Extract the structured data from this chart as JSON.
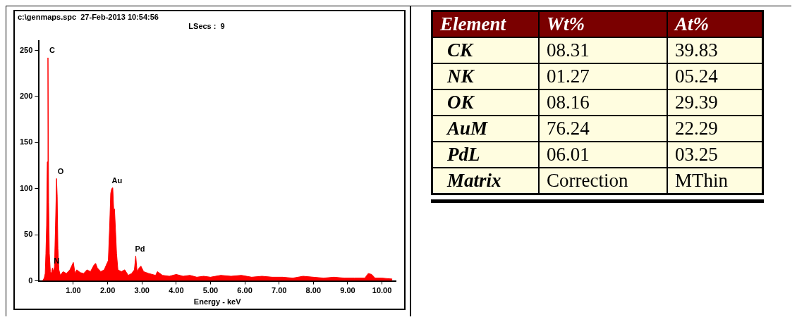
{
  "chart_data": [
    {
      "type": "area",
      "title": "c:\\genmaps.spc  27-Feb-2013 10:54:56",
      "subtitle": "LSecs :  9",
      "xlabel": "Energy - keV",
      "x": [
        0.1,
        0.15,
        0.18,
        0.2,
        0.22,
        0.24,
        0.26,
        0.28,
        0.3,
        0.33,
        0.36,
        0.39,
        0.42,
        0.45,
        0.48,
        0.51,
        0.53,
        0.55,
        0.58,
        0.62,
        0.7,
        0.8,
        0.9,
        1.0,
        1.05,
        1.1,
        1.2,
        1.3,
        1.4,
        1.5,
        1.6,
        1.65,
        1.7,
        1.8,
        1.9,
        1.97,
        2.02,
        2.06,
        2.09,
        2.12,
        2.15,
        2.18,
        2.2,
        2.23,
        2.26,
        2.3,
        2.4,
        2.5,
        2.6,
        2.7,
        2.78,
        2.82,
        2.86,
        2.92,
        2.97,
        3.05,
        3.2,
        3.4,
        3.45,
        3.6,
        3.8,
        4.0,
        4.2,
        4.4,
        4.6,
        4.8,
        5.0,
        5.3,
        5.6,
        5.9,
        6.2,
        6.5,
        6.8,
        7.1,
        7.4,
        7.7,
        8.0,
        8.3,
        8.6,
        8.9,
        9.2,
        9.5,
        9.6,
        9.7,
        9.8,
        10.0,
        10.3
      ],
      "series": [
        {
          "color": "#ff0000",
          "values": [
            0,
            3,
            8,
            30,
            60,
            129,
            242,
            85,
            30,
            10,
            8,
            14,
            10,
            15,
            60,
            111,
            92,
            35,
            12,
            6,
            10,
            8,
            12,
            20,
            8,
            12,
            9,
            8,
            12,
            10,
            17,
            19,
            14,
            10,
            12,
            18,
            22,
            60,
            95,
            100,
            101,
            75,
            78,
            55,
            30,
            12,
            10,
            12,
            6,
            8,
            12,
            27,
            10,
            14,
            16,
            10,
            8,
            6,
            10,
            6,
            5,
            7,
            5,
            6,
            4,
            5,
            4,
            6,
            5,
            6,
            4,
            5,
            4,
            4,
            3,
            5,
            4,
            3,
            4,
            3,
            3,
            3,
            8,
            7,
            3,
            3,
            2
          ]
        }
      ],
      "xlim": [
        0,
        10.4
      ],
      "xticks": [
        {
          "value": 1,
          "label": "1.00"
        },
        {
          "value": 2,
          "label": "2.00"
        },
        {
          "value": 3,
          "label": "3.00"
        },
        {
          "value": 4,
          "label": "4.00"
        },
        {
          "value": 5,
          "label": "5.00"
        },
        {
          "value": 6,
          "label": "6.00"
        },
        {
          "value": 7,
          "label": "7.00"
        },
        {
          "value": 8,
          "label": "8.00"
        },
        {
          "value": 9,
          "label": "9.00"
        },
        {
          "value": 10,
          "label": "10.00"
        }
      ],
      "ylim": [
        0,
        260
      ],
      "yticks": [
        0,
        50,
        100,
        150,
        200,
        250
      ],
      "annotations": [
        {
          "text": "C",
          "x": 0.26,
          "y": 242
        },
        {
          "text": "N",
          "x": 0.39,
          "y": 14
        },
        {
          "text": "O",
          "x": 0.51,
          "y": 111
        },
        {
          "text": "Au",
          "x": 2.15,
          "y": 101
        },
        {
          "text": "Pd",
          "x": 2.82,
          "y": 27
        }
      ]
    },
    {
      "type": "other",
      "xlabel": "Element",
      "categories": [
        "CK",
        "NK",
        "OK",
        "AuM",
        "PdL",
        "Matrix"
      ],
      "series": [
        {
          "name": "Wt%",
          "values": [
            8.31,
            1.27,
            8.16,
            76.24,
            6.01,
            null
          ],
          "value_labels": [
            "08.31",
            "01.27",
            "08.16",
            "76.24",
            "06.01",
            "Correction"
          ]
        },
        {
          "name": "At%",
          "values": [
            39.83,
            5.24,
            29.39,
            22.29,
            3.25,
            null
          ],
          "value_labels": [
            "39.83",
            "05.24",
            "29.39",
            "22.29",
            "03.25",
            "MThin"
          ]
        }
      ]
    }
  ]
}
